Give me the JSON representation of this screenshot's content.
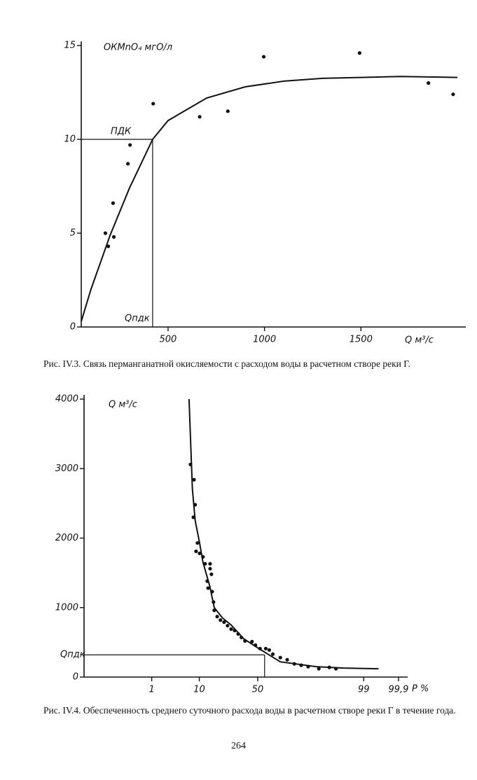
{
  "chart_data": [
    {
      "type": "scatter",
      "y_label": "OКMnO₄ мгО/л",
      "x_label": "Q м³/с",
      "xlim": [
        50,
        2000
      ],
      "ylim": [
        0,
        15
      ],
      "xticks": [
        500,
        1000,
        1500
      ],
      "yticks": [
        0,
        5,
        10,
        15
      ],
      "series": [
        {
          "type": "scatter",
          "color": "#111111",
          "x": [
            175,
            190,
            219,
            215,
            292,
            303,
            423,
            664,
            810,
            996,
            1493,
            1850,
            1978
          ],
          "values": [
            5.0,
            4.3,
            4.8,
            6.6,
            8.7,
            9.7,
            11.9,
            11.2,
            11.5,
            14.4,
            14.6,
            13.0,
            12.4
          ]
        },
        {
          "type": "line",
          "color": "#111111",
          "x": [
            50,
            100,
            200,
            300,
            420,
            500,
            700,
            900,
            1100,
            1300,
            1500,
            1700,
            2000
          ],
          "values": [
            0.3,
            2.0,
            4.9,
            7.4,
            10,
            11.0,
            12.2,
            12.8,
            13.1,
            13.25,
            13.3,
            13.35,
            13.3
          ]
        }
      ],
      "guide": {
        "x": 420,
        "y": 10
      },
      "annotations": [
        {
          "text": "ПДК"
        },
        {
          "text": "Qпдк"
        }
      ],
      "caption": "Рис. IV.3. Связь перманганатной окисляемости с расходом воды в расчетном створе реки Г."
    },
    {
      "type": "scatter",
      "xscale": "probability",
      "y_label": "Q м³/с",
      "x_label": "P %",
      "xlim": [
        0.01,
        99.95
      ],
      "ylim": [
        0,
        4000
      ],
      "xticks": [
        1,
        10,
        50,
        99,
        {
          "value": 99.9,
          "label": "99,9"
        }
      ],
      "yticks": [
        0,
        1000,
        2000,
        3000,
        4000
      ],
      "series": [
        {
          "type": "scatter",
          "color": "#111111",
          "x": [
            7.0,
            8.1,
            7.9,
            8.5,
            9.3,
            10.1,
            11.5,
            8.8,
            12.4,
            14.8,
            15.5,
            13.4,
            15.9,
            16.6,
            17,
            18.7,
            20.7,
            23,
            25.4,
            28,
            30.6,
            33.4,
            36,
            39,
            45,
            48,
            52,
            57,
            60,
            63,
            69,
            74.1,
            78.9,
            83,
            86.6,
            91,
            94.2,
            95.7,
            14.8,
            13.8
          ],
          "values": [
            3060,
            2840,
            2300,
            2480,
            1930,
            1780,
            1730,
            1810,
            1630,
            1630,
            1480,
            1380,
            1230,
            1080,
            960,
            870,
            820,
            790,
            740,
            690,
            670,
            620,
            570,
            520,
            510,
            460,
            410,
            410,
            390,
            330,
            280,
            250,
            190,
            170,
            150,
            120,
            140,
            120,
            1560,
            1280
          ]
        },
        {
          "type": "line",
          "color": "#111111",
          "x": [
            6.6,
            7.6,
            8.5,
            10,
            11.5,
            14.7,
            17,
            22,
            28,
            38,
            50,
            69,
            90,
            97,
            99.6
          ],
          "values": [
            4000,
            2700,
            2250,
            1950,
            1650,
            1300,
            1000,
            850,
            750,
            550,
            420,
            220,
            150,
            130,
            120
          ]
        }
      ],
      "guide": {
        "x": 56,
        "y": 320
      },
      "annotations": [
        {
          "text": "Qпдк"
        }
      ],
      "caption": "Рис. IV.4. Обеспеченность среднего суточного расхода воды в расчетном створе реки Г в течение года."
    }
  ],
  "page_number": "264"
}
